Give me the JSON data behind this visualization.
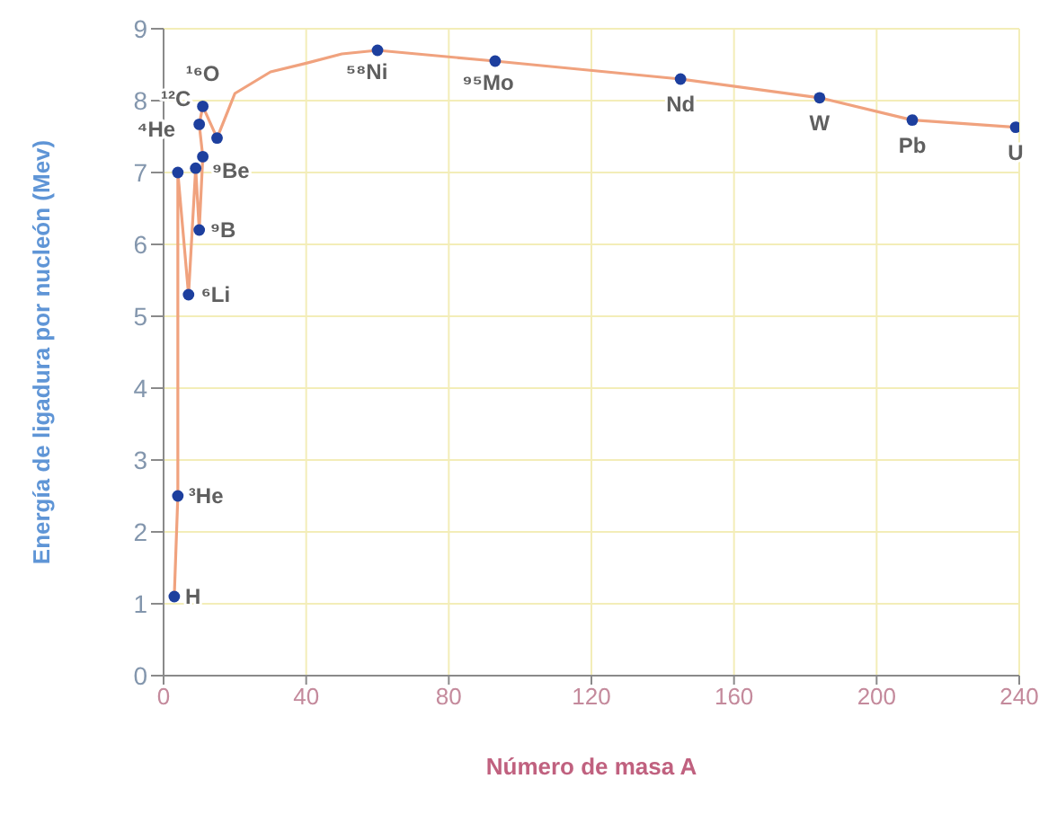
{
  "chart_data": {
    "type": "scatter",
    "xlabel": "Número de masa A",
    "ylabel": "Energía de ligadura por nucleón (Mev)",
    "xlim": [
      0,
      240
    ],
    "ylim": [
      0,
      9
    ],
    "xticks": [
      0,
      40,
      80,
      120,
      160,
      200,
      240
    ],
    "yticks": [
      0,
      1,
      2,
      3,
      4,
      5,
      6,
      7,
      8,
      9
    ],
    "grid": true,
    "series": [
      {
        "type": "line",
        "color": "#f0a27e",
        "marker": "none",
        "x": [
          3,
          4,
          4,
          7,
          9,
          10,
          11,
          10,
          11,
          15,
          20,
          30,
          40,
          50,
          60,
          93,
          145,
          184,
          210,
          239
        ],
        "values": [
          1.1,
          2.5,
          7.0,
          5.3,
          7.06,
          6.2,
          7.22,
          7.67,
          7.92,
          7.48,
          8.1,
          8.4,
          8.52,
          8.65,
          8.7,
          8.55,
          8.3,
          8.04,
          7.73,
          7.63
        ]
      },
      {
        "color": "#1d3f9e",
        "marker": "circle",
        "x": [
          3,
          4,
          4,
          7,
          9,
          10,
          11,
          10,
          11,
          15,
          60,
          93,
          145,
          184,
          210,
          239
        ],
        "values": [
          1.1,
          2.5,
          7.0,
          5.3,
          7.06,
          6.2,
          7.22,
          7.67,
          7.92,
          7.48,
          8.7,
          8.55,
          8.3,
          8.04,
          7.73,
          7.63
        ]
      }
    ],
    "annotations": [
      {
        "text": "H",
        "x": 3,
        "y": 1.1
      },
      {
        "text": "³He",
        "x": 4,
        "y": 2.5
      },
      {
        "text": "⁴He",
        "x": 4,
        "y": 7.0
      },
      {
        "text": "⁶Li",
        "x": 7,
        "y": 5.3
      },
      {
        "text": "⁹B",
        "x": 10,
        "y": 6.2
      },
      {
        "text": "⁹Be",
        "x": 11,
        "y": 7.22
      },
      {
        "text": "¹²C",
        "x": 10,
        "y": 7.67
      },
      {
        "text": "¹⁶O",
        "x": 11,
        "y": 7.92
      },
      {
        "text": "⁵⁸Ni",
        "x": 60,
        "y": 8.7
      },
      {
        "text": "⁹⁵Mo",
        "x": 93,
        "y": 8.55
      },
      {
        "text": "Nd",
        "x": 145,
        "y": 8.3
      },
      {
        "text": "W",
        "x": 184,
        "y": 8.04
      },
      {
        "text": "Pb",
        "x": 210,
        "y": 7.73
      },
      {
        "text": "U",
        "x": 239,
        "y": 7.63
      }
    ]
  }
}
